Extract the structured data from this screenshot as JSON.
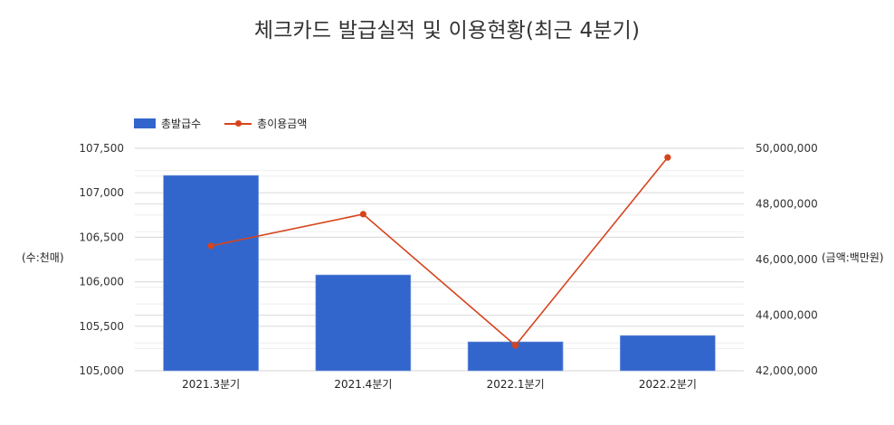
{
  "title": "체크카드 발급실적 및 이용현황(최근 4분기)",
  "legend": {
    "bar_label": "총발급수",
    "line_label": "총이용금액"
  },
  "axes": {
    "left_title": "(수:천매)",
    "right_title": "(금액:백만원)",
    "left_ticks": [
      "107,500",
      "107,000",
      "106,500",
      "106,000",
      "105,500",
      "105,000"
    ],
    "right_ticks": [
      "50,000,000",
      "48,000,000",
      "46,000,000",
      "44,000,000",
      "42,000,000"
    ]
  },
  "colors": {
    "bar": "#3366cc",
    "line": "#d6441c",
    "grid": "#dddddd",
    "grid_minor": "#eeeeee"
  },
  "chart_data": {
    "type": "bar+line",
    "title": "체크카드 발급실적 및 이용현황(최근 4분기)",
    "categories": [
      "2021.3분기",
      "2021.4분기",
      "2022.1분기",
      "2022.2분기"
    ],
    "series": [
      {
        "name": "총발급수",
        "type": "bar",
        "axis": "left",
        "values": [
          107195,
          106077,
          105325,
          105396
        ]
      },
      {
        "name": "총이용금액",
        "type": "line",
        "axis": "right",
        "values": [
          46490000,
          47630000,
          42910000,
          49670000
        ]
      }
    ],
    "xlabel": "",
    "ylabel": "(수:천매)",
    "y2label": "(금액:백만원)",
    "ylim": [
      105000,
      107500
    ],
    "y2lim": [
      42000000,
      50000000
    ],
    "grid": true,
    "legend_position": "top-left"
  }
}
